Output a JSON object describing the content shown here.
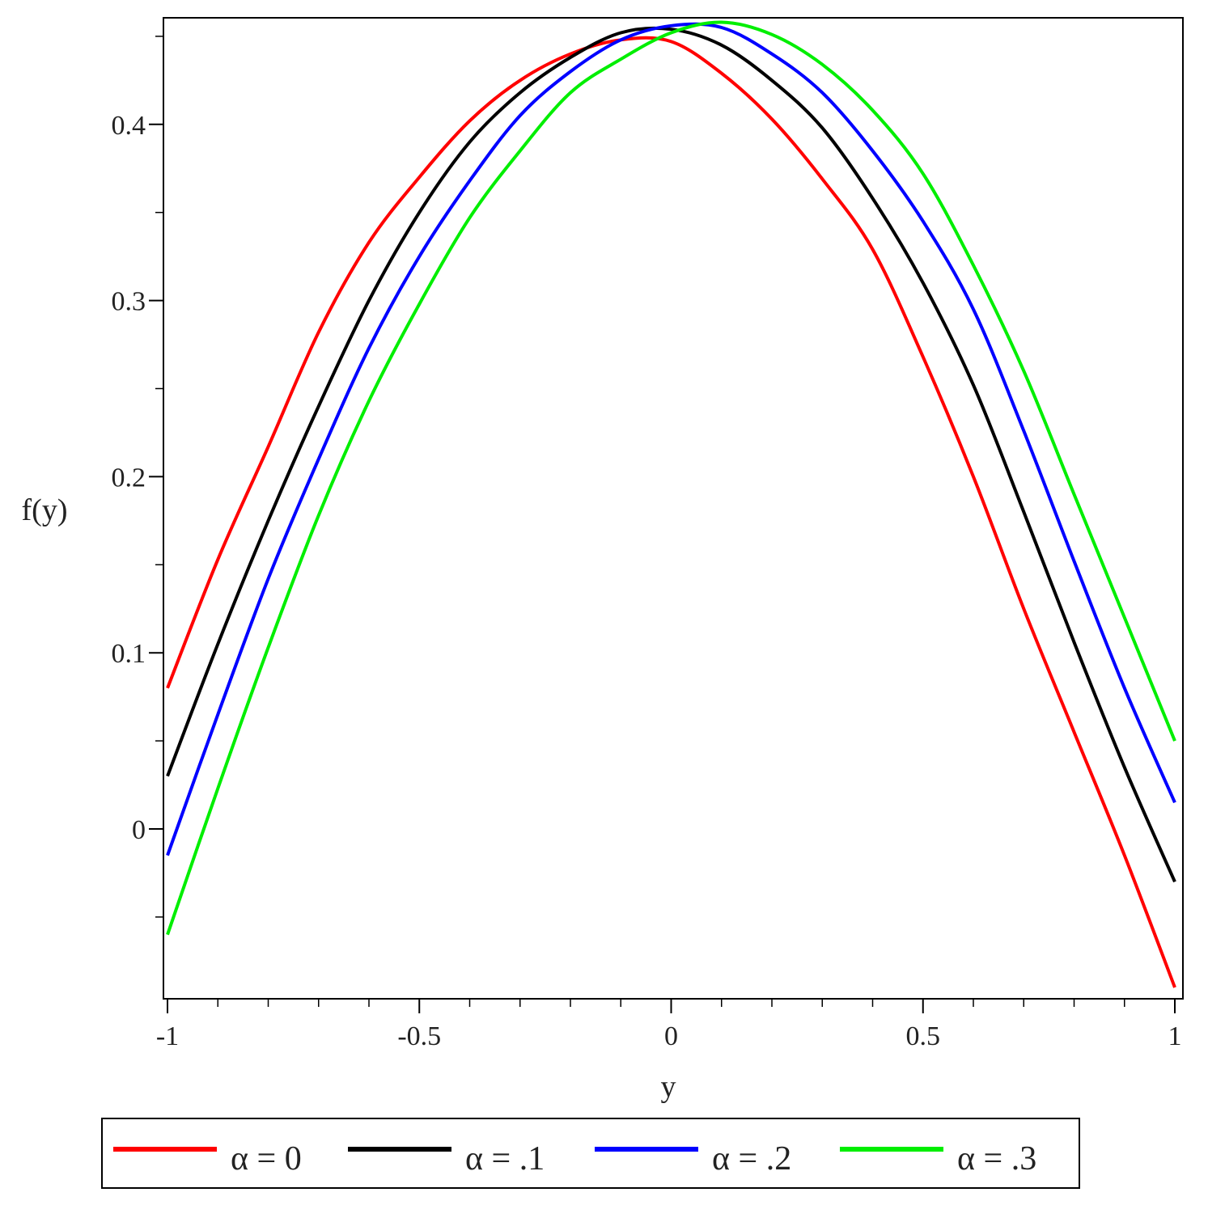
{
  "chart_data": {
    "type": "line",
    "xlabel": "y",
    "ylabel": "f(y)",
    "xlim": [
      -1,
      1
    ],
    "ylim": [
      -0.095,
      0.46
    ],
    "grid": false,
    "legend_position": "bottom",
    "x_ticks": [
      {
        "value": -1,
        "label": "-1"
      },
      {
        "value": -0.5,
        "label": "-0.5"
      },
      {
        "value": 0,
        "label": "0"
      },
      {
        "value": 0.5,
        "label": "0.5"
      },
      {
        "value": 1,
        "label": "1"
      }
    ],
    "y_ticks": [
      {
        "value": 0,
        "label": "0"
      },
      {
        "value": 0.1,
        "label": "0.1"
      },
      {
        "value": 0.2,
        "label": "0.2"
      },
      {
        "value": 0.3,
        "label": "0.3"
      },
      {
        "value": 0.4,
        "label": "0.4"
      }
    ],
    "series": [
      {
        "name": "α = 0",
        "color": "#ff0000",
        "x": [
          -1,
          -0.9,
          -0.8,
          -0.7,
          -0.6,
          -0.5,
          -0.4,
          -0.3,
          -0.2,
          -0.1,
          0,
          0.1,
          0.2,
          0.3,
          0.4,
          0.5,
          0.6,
          0.7,
          0.8,
          0.9,
          1
        ],
        "y": [
          0.08,
          0.153,
          0.217,
          0.282,
          0.333,
          0.37,
          0.402,
          0.425,
          0.44,
          0.448,
          0.447,
          0.429,
          0.403,
          0.369,
          0.329,
          0.268,
          0.2,
          0.125,
          0.055,
          -0.015,
          -0.09
        ]
      },
      {
        "name": "α = .1",
        "color": "#000000",
        "x": [
          -1,
          -0.9,
          -0.8,
          -0.7,
          -0.6,
          -0.5,
          -0.4,
          -0.3,
          -0.2,
          -0.1,
          0,
          0.1,
          0.2,
          0.3,
          0.4,
          0.5,
          0.6,
          0.7,
          0.8,
          0.9,
          1
        ],
        "y": [
          0.03,
          0.105,
          0.175,
          0.24,
          0.3,
          0.35,
          0.39,
          0.418,
          0.438,
          0.452,
          0.454,
          0.445,
          0.425,
          0.398,
          0.358,
          0.31,
          0.252,
          0.18,
          0.106,
          0.035,
          -0.03
        ]
      },
      {
        "name": "α = .2",
        "color": "#0000ff",
        "x": [
          -1,
          -0.9,
          -0.8,
          -0.7,
          -0.6,
          -0.5,
          -0.4,
          -0.3,
          -0.2,
          -0.1,
          0,
          0.1,
          0.2,
          0.3,
          0.4,
          0.5,
          0.6,
          0.7,
          0.8,
          0.9,
          1
        ],
        "y": [
          -0.015,
          0.065,
          0.142,
          0.21,
          0.273,
          0.325,
          0.368,
          0.405,
          0.43,
          0.448,
          0.456,
          0.455,
          0.44,
          0.418,
          0.385,
          0.345,
          0.295,
          0.226,
          0.152,
          0.08,
          0.015
        ]
      },
      {
        "name": "α = .3",
        "color": "#00ee00",
        "x": [
          -1,
          -0.9,
          -0.8,
          -0.7,
          -0.6,
          -0.5,
          -0.4,
          -0.3,
          -0.2,
          -0.1,
          0,
          0.1,
          0.2,
          0.3,
          0.4,
          0.5,
          0.6,
          0.7,
          0.8,
          0.9,
          1
        ],
        "y": [
          -0.06,
          0.023,
          0.103,
          0.178,
          0.243,
          0.298,
          0.347,
          0.385,
          0.418,
          0.437,
          0.452,
          0.458,
          0.451,
          0.434,
          0.408,
          0.372,
          0.32,
          0.26,
          0.19,
          0.12,
          0.05
        ]
      }
    ]
  }
}
